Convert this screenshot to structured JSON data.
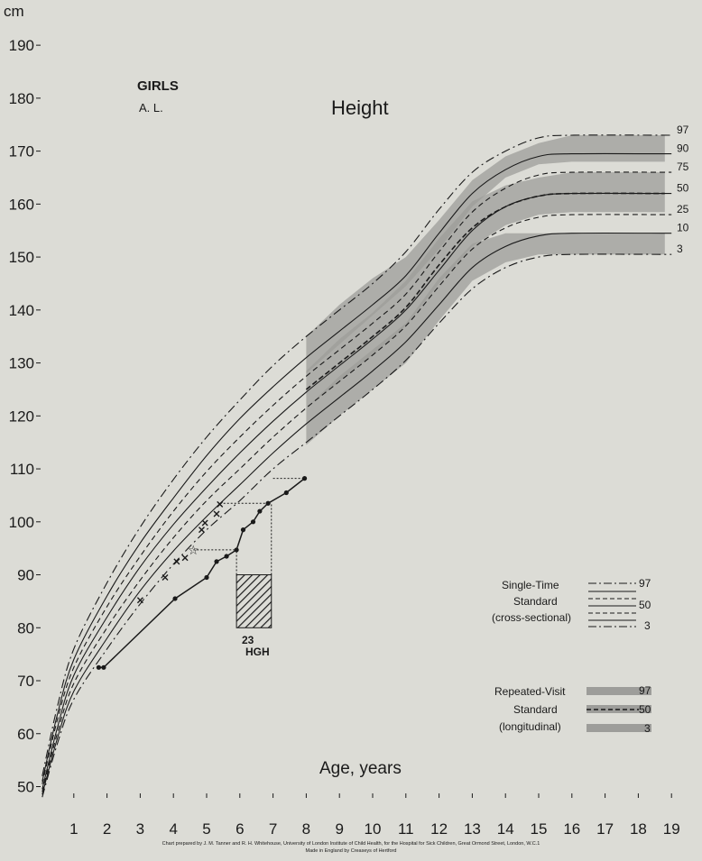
{
  "title": "Height",
  "header": {
    "sex": "GIRLS",
    "patient": "A. L."
  },
  "axis": {
    "y_unit": "cm",
    "x_label": "Age, years"
  },
  "treatment": {
    "label_number": "23",
    "label_text": "HGH"
  },
  "legend": {
    "single_time": {
      "lines": [
        "Single-Time",
        "Standard",
        "(cross-sectional)"
      ],
      "values": [
        "97",
        "50",
        "3"
      ]
    },
    "repeated_visit": {
      "lines": [
        "Repeated-Visit",
        "Standard",
        "(longitudinal)"
      ],
      "values": [
        "97",
        "50",
        "3"
      ]
    }
  },
  "credit": {
    "line1": "Chart prepared by J. M. Tanner and R. H. Whitehouse, University of London Institute of Child Health, for the Hospital for Sick Children, Great Ormond Street, London, W.C.1",
    "line2": "Made in England by Creaseys of Hertford"
  },
  "colors": {
    "paper": "#dcdcd6",
    "ink": "#1a1a1a",
    "band": "#9d9d9a"
  },
  "chart_data": {
    "type": "line",
    "title": "Height",
    "xlabel": "Age, years",
    "ylabel": "cm",
    "xlim": [
      0,
      19
    ],
    "ylim": [
      45,
      192
    ],
    "x_ticks": [
      1,
      2,
      3,
      4,
      5,
      6,
      7,
      8,
      9,
      10,
      11,
      12,
      13,
      14,
      15,
      16,
      17,
      18,
      19
    ],
    "y_ticks": [
      50,
      60,
      70,
      80,
      90,
      100,
      110,
      120,
      130,
      140,
      150,
      160,
      170,
      180,
      190
    ],
    "centile_labels": [
      "97",
      "90",
      "75",
      "50",
      "25",
      "10",
      "3"
    ],
    "centiles": [
      {
        "name": "97",
        "dash": "dashdot",
        "points": [
          [
            0.05,
            52
          ],
          [
            0.5,
            65
          ],
          [
            1,
            76
          ],
          [
            2,
            88.5
          ],
          [
            3,
            99
          ],
          [
            4,
            108
          ],
          [
            5,
            116
          ],
          [
            6,
            123
          ],
          [
            7,
            129.5
          ],
          [
            8,
            135
          ],
          [
            9,
            140
          ],
          [
            10,
            145
          ],
          [
            11,
            151
          ],
          [
            12,
            159
          ],
          [
            13,
            166
          ],
          [
            14,
            170
          ],
          [
            15,
            172.5
          ],
          [
            16,
            173
          ],
          [
            19,
            173
          ]
        ]
      },
      {
        "name": "90",
        "dash": "solid",
        "points": [
          [
            0.05,
            51
          ],
          [
            0.5,
            63.5
          ],
          [
            1,
            74
          ],
          [
            2,
            86
          ],
          [
            3,
            96
          ],
          [
            4,
            104.5
          ],
          [
            5,
            112.5
          ],
          [
            6,
            119.5
          ],
          [
            7,
            125.5
          ],
          [
            8,
            131
          ],
          [
            9,
            136
          ],
          [
            10,
            141
          ],
          [
            11,
            146.5
          ],
          [
            12,
            154.5
          ],
          [
            13,
            162
          ],
          [
            14,
            166.5
          ],
          [
            15,
            169
          ],
          [
            16,
            169.5
          ],
          [
            19,
            169.5
          ]
        ]
      },
      {
        "name": "75",
        "dash": "dash",
        "points": [
          [
            0.05,
            50.5
          ],
          [
            0.5,
            62.5
          ],
          [
            1,
            72.5
          ],
          [
            2,
            84
          ],
          [
            3,
            93.5
          ],
          [
            4,
            102
          ],
          [
            5,
            109.5
          ],
          [
            6,
            116
          ],
          [
            7,
            122
          ],
          [
            8,
            127.5
          ],
          [
            9,
            132.5
          ],
          [
            10,
            137.5
          ],
          [
            11,
            143
          ],
          [
            12,
            151
          ],
          [
            13,
            158.5
          ],
          [
            14,
            163
          ],
          [
            15,
            165.5
          ],
          [
            16,
            166
          ],
          [
            19,
            166
          ]
        ]
      },
      {
        "name": "50",
        "dash": "solid",
        "points": [
          [
            0.05,
            49.5
          ],
          [
            0.5,
            61
          ],
          [
            1,
            71
          ],
          [
            2,
            82
          ],
          [
            3,
            91.5
          ],
          [
            4,
            99.5
          ],
          [
            5,
            106.5
          ],
          [
            6,
            113
          ],
          [
            7,
            119
          ],
          [
            8,
            124.5
          ],
          [
            9,
            129.5
          ],
          [
            10,
            134.5
          ],
          [
            11,
            140
          ],
          [
            12,
            147.5
          ],
          [
            13,
            155
          ],
          [
            14,
            159.5
          ],
          [
            15,
            161.5
          ],
          [
            16,
            162
          ],
          [
            19,
            162
          ]
        ]
      },
      {
        "name": "25",
        "dash": "dash",
        "points": [
          [
            0.05,
            49
          ],
          [
            0.5,
            60
          ],
          [
            1,
            69.5
          ],
          [
            2,
            80
          ],
          [
            3,
            89
          ],
          [
            4,
            97
          ],
          [
            5,
            104
          ],
          [
            6,
            110
          ],
          [
            7,
            116
          ],
          [
            8,
            121.5
          ],
          [
            9,
            126.5
          ],
          [
            10,
            131.5
          ],
          [
            11,
            137
          ],
          [
            12,
            144.5
          ],
          [
            13,
            151.5
          ],
          [
            14,
            155.5
          ],
          [
            15,
            157.5
          ],
          [
            16,
            158
          ],
          [
            19,
            158
          ]
        ]
      },
      {
        "name": "10",
        "dash": "solid",
        "points": [
          [
            0.05,
            48.5
          ],
          [
            0.5,
            59
          ],
          [
            1,
            68
          ],
          [
            2,
            78
          ],
          [
            3,
            87
          ],
          [
            4,
            94.5
          ],
          [
            5,
            101
          ],
          [
            6,
            107
          ],
          [
            7,
            113
          ],
          [
            8,
            118.5
          ],
          [
            9,
            123.5
          ],
          [
            10,
            128.5
          ],
          [
            11,
            134
          ],
          [
            12,
            141
          ],
          [
            13,
            148
          ],
          [
            14,
            152
          ],
          [
            15,
            154
          ],
          [
            16,
            154.5
          ],
          [
            19,
            154.5
          ]
        ]
      },
      {
        "name": "3",
        "dash": "dashdot",
        "points": [
          [
            0.05,
            48
          ],
          [
            0.5,
            58
          ],
          [
            1,
            66.5
          ],
          [
            2,
            76
          ],
          [
            3,
            84.5
          ],
          [
            4,
            92
          ],
          [
            5,
            98.5
          ],
          [
            6,
            104
          ],
          [
            7,
            110
          ],
          [
            8,
            115
          ],
          [
            9,
            120
          ],
          [
            10,
            125
          ],
          [
            11,
            130.5
          ],
          [
            12,
            137.5
          ],
          [
            13,
            144
          ],
          [
            14,
            148
          ],
          [
            15,
            150
          ],
          [
            16,
            150.5
          ],
          [
            19,
            150.5
          ]
        ]
      }
    ],
    "longitudinal_bands": [
      {
        "name": "97",
        "x": [
          8,
          9,
          10,
          11,
          12,
          13,
          14,
          15,
          16,
          18.8
        ],
        "upper": [
          135,
          141,
          146,
          150,
          157,
          164.5,
          169,
          171.5,
          173,
          173
        ],
        "lower": [
          128,
          133.5,
          139,
          144.5,
          151.5,
          159.5,
          165,
          167.5,
          168,
          168
        ]
      },
      {
        "name": "50",
        "x": [
          8,
          9,
          10,
          11,
          12,
          13,
          14,
          15,
          16,
          18.8
        ],
        "upper": [
          128.5,
          134.5,
          139.5,
          145.5,
          153.5,
          160.5,
          163.5,
          165,
          166,
          166
        ]
      },
      {
        "name": "3",
        "x": [
          8,
          9,
          10,
          11,
          12,
          13,
          14,
          15,
          16,
          18.8
        ],
        "upper": [
          121.5,
          127.5,
          132.5,
          137.5,
          146,
          152.5,
          154.5,
          154.5,
          154.5,
          154.5
        ],
        "lower": [
          114.5,
          120,
          125,
          130,
          138,
          145.5,
          149,
          150.5,
          150.5,
          150.5
        ]
      }
    ],
    "longitudinal_50_line": [
      [
        8,
        125
      ],
      [
        9,
        130
      ],
      [
        10,
        135
      ],
      [
        11,
        140.5
      ],
      [
        12,
        148.5
      ],
      [
        13,
        155.5
      ],
      [
        14,
        159.5
      ],
      [
        15,
        161.5
      ],
      [
        16,
        162
      ],
      [
        18.8,
        162
      ]
    ],
    "patient_height": [
      [
        1.75,
        72.5
      ],
      [
        1.9,
        72.5
      ],
      [
        4.05,
        85.5
      ],
      [
        5.0,
        89.5
      ],
      [
        5.3,
        92.5
      ],
      [
        5.6,
        93.5
      ],
      [
        5.9,
        94.7
      ],
      [
        6.1,
        98.5
      ],
      [
        6.4,
        100
      ],
      [
        6.6,
        102
      ],
      [
        6.85,
        103.5
      ],
      [
        7.4,
        105.5
      ],
      [
        7.95,
        108.2
      ]
    ],
    "height_age_points": [
      [
        3.0,
        85.2
      ],
      [
        3.75,
        89.5
      ],
      [
        4.1,
        92.5
      ],
      [
        4.35,
        93.2
      ],
      [
        4.85,
        98.5
      ],
      [
        4.95,
        99.8
      ],
      [
        5.3,
        101.5
      ],
      [
        5.4,
        103.3
      ]
    ],
    "height_age_star": [
      4.6,
      94.7
    ],
    "height_age_links": [
      {
        "from": [
          4.6,
          94.7
        ],
        "to": [
          5.9,
          94.7
        ]
      },
      {
        "from": [
          5.4,
          103.5
        ],
        "to": [
          6.85,
          103.5
        ]
      },
      {
        "from": [
          7.0,
          108.2
        ],
        "to": [
          7.95,
          108.2
        ]
      }
    ],
    "treatment_period": {
      "x": [
        5.9,
        6.95
      ],
      "y": [
        80,
        90
      ]
    }
  }
}
